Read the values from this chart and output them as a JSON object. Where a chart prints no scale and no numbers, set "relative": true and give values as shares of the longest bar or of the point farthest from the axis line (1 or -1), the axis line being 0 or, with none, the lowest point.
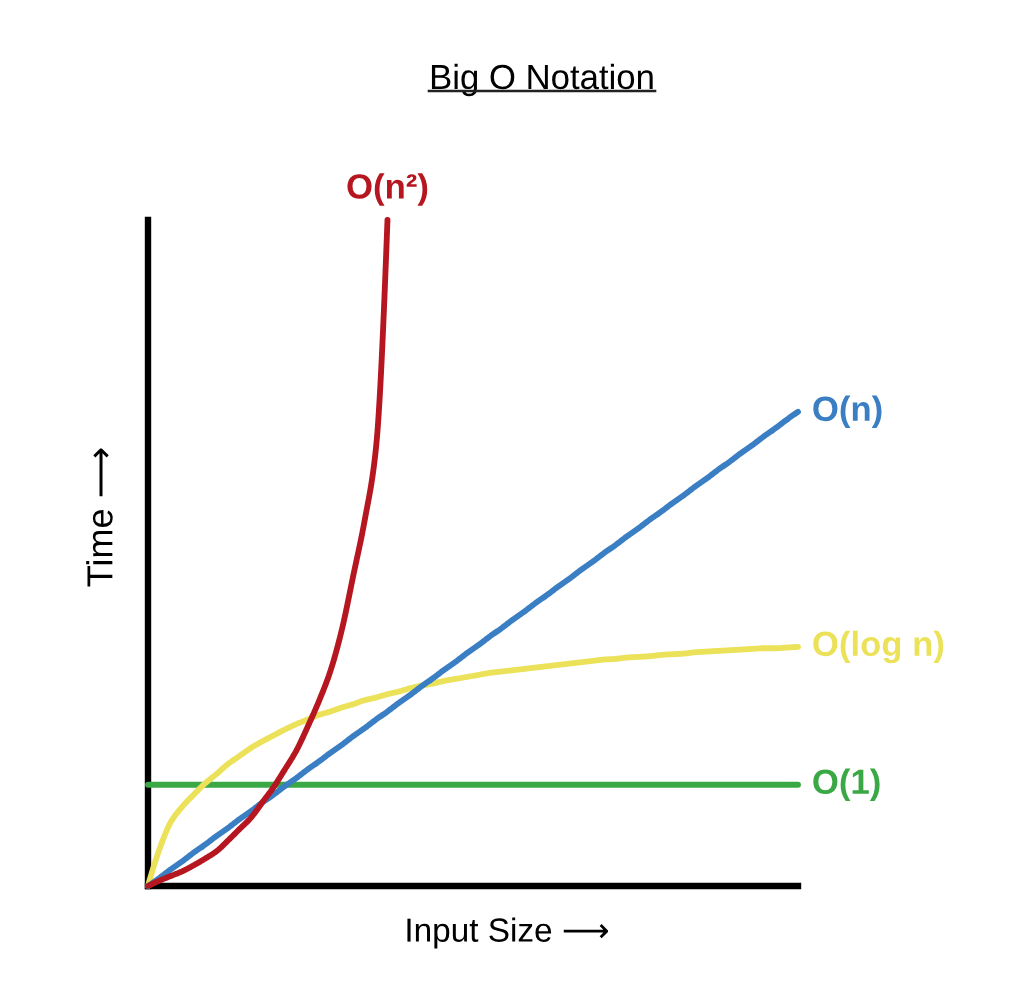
{
  "chart_data": {
    "type": "line",
    "title": "Big O Notation",
    "xlabel": "Input Size ⟶",
    "ylabel": "Time ⟶",
    "relative": true,
    "legend": false,
    "marker": "none",
    "line_style": "solid",
    "categories": [
      null,
      null,
      null,
      null,
      null,
      null,
      null,
      null,
      null,
      null,
      null,
      null,
      null,
      null,
      null,
      null,
      null,
      null,
      null,
      null,
      null,
      null,
      null,
      null,
      null,
      null,
      null,
      null,
      null,
      null,
      null,
      null,
      null,
      null,
      null,
      null,
      null,
      null,
      null,
      null,
      null,
      null,
      null,
      null,
      null,
      null,
      null,
      null,
      null,
      null,
      null,
      null,
      null,
      null,
      null,
      null,
      null,
      null
    ],
    "series": [
      {
        "name": "O(n²)",
        "color": "#b5161f",
        "values": [
          0,
          0.008,
          0.015,
          0.022,
          0.031,
          0.041,
          0.052,
          0.068,
          0.085,
          0.102,
          0.125,
          0.148,
          0.175,
          0.203,
          0.239,
          0.278,
          0.323,
          0.385,
          0.466,
          0.549,
          0.659,
          1,
          null,
          null,
          null,
          null,
          null,
          null,
          null,
          null,
          null,
          null,
          null,
          null,
          null,
          null,
          null,
          null,
          null,
          null,
          null,
          null,
          null,
          null,
          null,
          null,
          null,
          null,
          null,
          null,
          null,
          null,
          null,
          null,
          null,
          null,
          null,
          null
        ]
      },
      {
        "name": "O(n)",
        "color": "#3a7ec4",
        "values": [
          0,
          0.012,
          0.025,
          0.037,
          0.05,
          0.062,
          0.075,
          0.087,
          0.1,
          0.112,
          0.125,
          0.137,
          0.15,
          0.162,
          0.175,
          0.187,
          0.2,
          0.212,
          0.225,
          0.237,
          0.25,
          0.262,
          0.275,
          0.287,
          0.3,
          0.312,
          0.325,
          0.337,
          0.35,
          0.362,
          0.375,
          0.387,
          0.4,
          0.412,
          0.425,
          0.437,
          0.45,
          0.462,
          0.475,
          0.487,
          0.5,
          0.512,
          0.525,
          0.537,
          0.55,
          0.562,
          0.575,
          0.587,
          0.6,
          0.612,
          0.625,
          0.637,
          0.65,
          0.662,
          0.675,
          0.687,
          0.7,
          0.712
        ]
      },
      {
        "name": "O(log n)",
        "color": "#ebe25a",
        "values": [
          0,
          0.055,
          0.096,
          0.119,
          0.137,
          0.154,
          0.168,
          0.183,
          0.195,
          0.207,
          0.217,
          0.226,
          0.235,
          0.243,
          0.25,
          0.257,
          0.262,
          0.268,
          0.273,
          0.279,
          0.283,
          0.288,
          0.292,
          0.297,
          0.301,
          0.304,
          0.308,
          0.311,
          0.314,
          0.317,
          0.32,
          0.322,
          0.324,
          0.326,
          0.328,
          0.33,
          0.332,
          0.334,
          0.336,
          0.338,
          0.34,
          0.341,
          0.343,
          0.344,
          0.345,
          0.347,
          0.348,
          0.349,
          0.351,
          0.352,
          0.353,
          0.354,
          0.355,
          0.356,
          0.357,
          0.357,
          0.358,
          0.359
        ]
      },
      {
        "name": "O(1)",
        "color": "#3aa845",
        "values": [
          0.152,
          0.152,
          0.152,
          0.152,
          0.152,
          0.152,
          0.152,
          0.152,
          0.152,
          0.152,
          0.152,
          0.152,
          0.152,
          0.152,
          0.152,
          0.152,
          0.152,
          0.152,
          0.152,
          0.152,
          0.152,
          0.152,
          0.152,
          0.152,
          0.152,
          0.152,
          0.152,
          0.152,
          0.152,
          0.152,
          0.152,
          0.152,
          0.152,
          0.152,
          0.152,
          0.152,
          0.152,
          0.152,
          0.152,
          0.152,
          0.152,
          0.152,
          0.152,
          0.152,
          0.152,
          0.152,
          0.152,
          0.152,
          0.152,
          0.152,
          0.152,
          0.152,
          0.152,
          0.152,
          0.152,
          0.152,
          0.152,
          0.152
        ]
      }
    ]
  }
}
